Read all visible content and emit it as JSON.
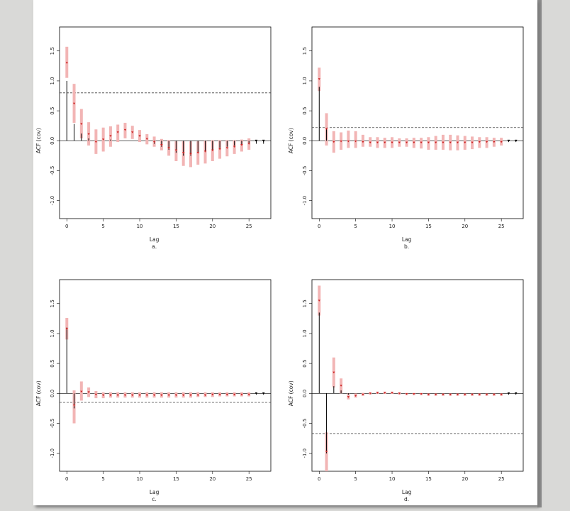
{
  "chart_data": [
    {
      "type": "bar",
      "subtitle": "a.",
      "xlabel": "Lag",
      "ylabel": "ACF (cov)",
      "xlim": [
        -1,
        28
      ],
      "ylim": [
        -1.3,
        1.9
      ],
      "xticks": [
        "0",
        "5",
        "10",
        "15",
        "20",
        "25"
      ],
      "yticks": [
        "-1.0",
        "-0.5",
        "0.0",
        "0.5",
        "1.0",
        "1.5"
      ],
      "reference_line": 0.8,
      "lags": [
        0,
        1,
        2,
        3,
        4,
        5,
        6,
        7,
        8,
        9,
        10,
        11,
        12,
        13,
        14,
        15,
        16,
        17,
        18,
        19,
        20,
        21,
        22,
        23,
        24,
        25,
        26,
        27
      ],
      "acf": [
        1.0,
        0.28,
        0.12,
        0.04,
        0.0,
        0.0,
        0.02,
        0.0,
        0.0,
        0.0,
        0.0,
        0.0,
        -0.05,
        -0.1,
        -0.15,
        -0.2,
        -0.25,
        -0.25,
        -0.2,
        -0.18,
        -0.15,
        -0.12,
        -0.1,
        -0.08,
        -0.06,
        -0.05,
        -0.05,
        -0.05
      ],
      "estimate": [
        1.3,
        0.62,
        0.28,
        0.11,
        -0.02,
        0.02,
        0.08,
        0.14,
        0.18,
        0.14,
        0.08,
        0.03,
        -0.02,
        -0.07,
        -0.12,
        -0.16,
        -0.2,
        -0.22,
        -0.2,
        -0.18,
        -0.16,
        -0.14,
        -0.12,
        -0.1,
        -0.07,
        -0.05,
        null,
        null
      ],
      "interval_low": [
        1.05,
        0.3,
        0.04,
        -0.08,
        -0.22,
        -0.18,
        -0.1,
        -0.02,
        0.04,
        0.03,
        -0.02,
        -0.06,
        -0.1,
        -0.16,
        -0.25,
        -0.34,
        -0.42,
        -0.44,
        -0.4,
        -0.38,
        -0.34,
        -0.3,
        -0.26,
        -0.22,
        -0.18,
        -0.15,
        null,
        null
      ],
      "interval_high": [
        1.57,
        0.95,
        0.53,
        0.31,
        0.19,
        0.22,
        0.24,
        0.27,
        0.3,
        0.25,
        0.18,
        0.11,
        0.07,
        0.03,
        0.01,
        -0.01,
        -0.01,
        -0.01,
        -0.01,
        0.0,
        0.01,
        0.01,
        0.01,
        0.01,
        0.02,
        0.04,
        null,
        null
      ],
      "colors": {
        "interval": "#f2b5b5",
        "estimate": "#cc2222",
        "acf": "#000000",
        "reference": "#444444"
      }
    },
    {
      "type": "bar",
      "subtitle": "b.",
      "xlabel": "Lag",
      "ylabel": "ACF (cov)",
      "xlim": [
        -1,
        28
      ],
      "ylim": [
        -1.3,
        1.9
      ],
      "xticks": [
        "0",
        "5",
        "10",
        "15",
        "20",
        "25"
      ],
      "yticks": [
        "-1.0",
        "-0.5",
        "0.0",
        "0.5",
        "1.0",
        "1.5"
      ],
      "reference_line": 0.22,
      "lags": [
        0,
        1,
        2,
        3,
        4,
        5,
        6,
        7,
        8,
        9,
        10,
        11,
        12,
        13,
        14,
        15,
        16,
        17,
        18,
        19,
        20,
        21,
        22,
        23,
        24,
        25,
        26,
        27
      ],
      "acf": [
        0.9,
        0.2,
        0.0,
        0.0,
        0.0,
        0.0,
        0.0,
        0.0,
        0.0,
        0.0,
        0.0,
        0.0,
        0.0,
        0.0,
        0.0,
        0.0,
        0.0,
        0.0,
        0.0,
        0.0,
        0.0,
        0.0,
        0.0,
        0.0,
        0.0,
        0.0,
        0.0,
        0.0
      ],
      "estimate": [
        1.03,
        0.2,
        -0.02,
        -0.01,
        -0.01,
        -0.01,
        -0.02,
        -0.03,
        -0.03,
        -0.03,
        -0.03,
        -0.03,
        -0.03,
        -0.03,
        -0.03,
        -0.03,
        -0.03,
        -0.03,
        -0.03,
        -0.03,
        -0.03,
        -0.03,
        -0.02,
        -0.02,
        -0.02,
        -0.02,
        null,
        null
      ],
      "interval_low": [
        0.83,
        -0.08,
        -0.2,
        -0.15,
        -0.12,
        -0.12,
        -0.1,
        -0.1,
        -0.12,
        -0.12,
        -0.12,
        -0.1,
        -0.1,
        -0.12,
        -0.13,
        -0.15,
        -0.15,
        -0.15,
        -0.16,
        -0.16,
        -0.15,
        -0.14,
        -0.12,
        -0.12,
        -0.1,
        -0.08,
        null,
        null
      ],
      "interval_high": [
        1.22,
        0.46,
        0.16,
        0.14,
        0.17,
        0.16,
        0.1,
        0.06,
        0.06,
        0.05,
        0.06,
        0.04,
        0.04,
        0.05,
        0.05,
        0.06,
        0.08,
        0.1,
        0.1,
        0.09,
        0.08,
        0.07,
        0.06,
        0.06,
        0.05,
        0.05,
        null,
        null
      ],
      "colors": {
        "interval": "#f2b5b5",
        "estimate": "#cc2222",
        "acf": "#000000",
        "reference": "#444444"
      }
    },
    {
      "type": "bar",
      "subtitle": "c.",
      "xlabel": "Lag",
      "ylabel": "ACF (cov)",
      "xlim": [
        -1,
        28
      ],
      "ylim": [
        -1.3,
        1.9
      ],
      "xticks": [
        "0",
        "5",
        "10",
        "15",
        "20",
        "25"
      ],
      "yticks": [
        "-1.0",
        "-0.5",
        "0.0",
        "0.5",
        "1.0",
        "1.5"
      ],
      "reference_line": -0.15,
      "lags": [
        0,
        1,
        2,
        3,
        4,
        5,
        6,
        7,
        8,
        9,
        10,
        11,
        12,
        13,
        14,
        15,
        16,
        17,
        18,
        19,
        20,
        21,
        22,
        23,
        24,
        25,
        26,
        27
      ],
      "acf": [
        1.1,
        -0.25,
        0.0,
        0.0,
        0.0,
        0.0,
        0.0,
        0.0,
        0.0,
        0.0,
        0.0,
        0.0,
        0.0,
        0.0,
        0.0,
        0.0,
        0.0,
        0.0,
        0.0,
        0.0,
        0.0,
        0.0,
        0.0,
        0.0,
        0.0,
        0.0,
        0.0,
        0.0
      ],
      "estimate": [
        1.08,
        -0.2,
        0.03,
        0.02,
        -0.02,
        -0.03,
        -0.03,
        -0.03,
        -0.03,
        -0.03,
        -0.03,
        -0.03,
        -0.03,
        -0.03,
        -0.03,
        -0.03,
        -0.03,
        -0.03,
        -0.03,
        -0.03,
        -0.02,
        -0.02,
        -0.02,
        -0.02,
        -0.02,
        -0.02,
        null,
        null
      ],
      "interval_low": [
        0.9,
        -0.5,
        -0.12,
        -0.06,
        -0.08,
        -0.08,
        -0.07,
        -0.07,
        -0.07,
        -0.07,
        -0.07,
        -0.07,
        -0.07,
        -0.07,
        -0.07,
        -0.07,
        -0.07,
        -0.07,
        -0.06,
        -0.06,
        -0.06,
        -0.05,
        -0.05,
        -0.05,
        -0.05,
        -0.05,
        null,
        null
      ],
      "interval_high": [
        1.26,
        0.05,
        0.2,
        0.1,
        0.04,
        0.02,
        0.02,
        0.02,
        0.02,
        0.02,
        0.02,
        0.02,
        0.02,
        0.02,
        0.02,
        0.02,
        0.02,
        0.02,
        0.02,
        0.02,
        0.02,
        0.02,
        0.02,
        0.02,
        0.02,
        0.02,
        null,
        null
      ],
      "colors": {
        "interval": "#f2b5b5",
        "estimate": "#cc2222",
        "acf": "#000000",
        "reference": "#444444"
      }
    },
    {
      "type": "bar",
      "subtitle": "d.",
      "xlabel": "Lag",
      "ylabel": "ACF (cov)",
      "xlim": [
        -1,
        28
      ],
      "ylim": [
        -1.3,
        1.9
      ],
      "xticks": [
        "0",
        "5",
        "10",
        "15",
        "20",
        "25"
      ],
      "yticks": [
        "-1.0",
        "-0.5",
        "0.0",
        "0.5",
        "1.0",
        "1.5"
      ],
      "reference_line": -0.67,
      "lags": [
        0,
        1,
        2,
        3,
        4,
        5,
        6,
        7,
        8,
        9,
        10,
        11,
        12,
        13,
        14,
        15,
        16,
        17,
        18,
        19,
        20,
        21,
        22,
        23,
        24,
        25,
        26,
        27
      ],
      "acf": [
        1.35,
        -1.0,
        0.12,
        0.05,
        -0.02,
        0.0,
        0.0,
        0.0,
        0.0,
        0.0,
        0.0,
        0.0,
        0.0,
        0.0,
        0.0,
        0.0,
        0.0,
        0.0,
        0.0,
        0.0,
        0.0,
        0.0,
        0.0,
        0.0,
        0.0,
        0.0,
        0.0,
        0.0
      ],
      "estimate": [
        1.55,
        -0.97,
        0.35,
        0.13,
        -0.06,
        -0.04,
        -0.02,
        0.0,
        0.01,
        0.01,
        0.01,
        0.0,
        -0.01,
        -0.01,
        -0.01,
        -0.02,
        -0.02,
        -0.02,
        -0.02,
        -0.02,
        -0.02,
        -0.02,
        -0.02,
        -0.02,
        -0.02,
        -0.02,
        null,
        null
      ],
      "interval_low": [
        1.3,
        -1.3,
        0.1,
        0.0,
        -0.1,
        -0.07,
        -0.04,
        -0.02,
        -0.01,
        -0.01,
        -0.01,
        -0.02,
        -0.03,
        -0.03,
        -0.03,
        -0.04,
        -0.04,
        -0.04,
        -0.04,
        -0.04,
        -0.04,
        -0.04,
        -0.04,
        -0.04,
        -0.04,
        -0.04,
        null,
        null
      ],
      "interval_high": [
        1.8,
        -0.65,
        0.6,
        0.25,
        0.0,
        0.0,
        0.01,
        0.02,
        0.03,
        0.03,
        0.03,
        0.02,
        0.01,
        0.01,
        0.01,
        0.0,
        0.0,
        0.0,
        0.0,
        0.0,
        0.0,
        0.0,
        0.0,
        0.0,
        0.0,
        0.0,
        null,
        null
      ],
      "colors": {
        "interval": "#f2b5b5",
        "estimate": "#cc2222",
        "acf": "#000000",
        "reference": "#444444"
      }
    }
  ]
}
